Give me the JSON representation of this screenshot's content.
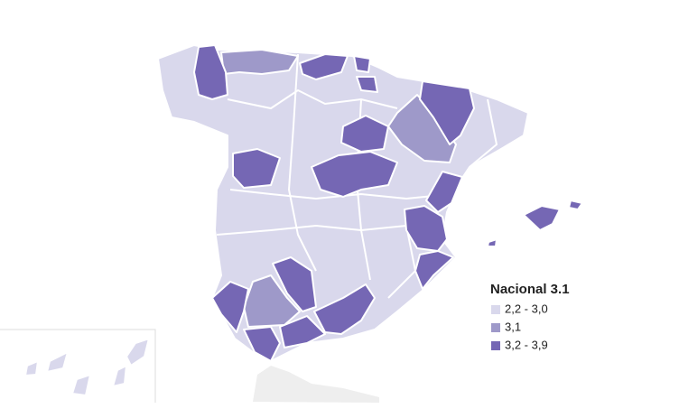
{
  "legend": {
    "title": "Nacional 3.1",
    "items": [
      {
        "label": "2,2 - 3,0",
        "color": "#d9d8ec"
      },
      {
        "label": "3,1",
        "color": "#9e99c9"
      },
      {
        "label": "3,2 - 3,9",
        "color": "#7567b4"
      }
    ]
  }
}
